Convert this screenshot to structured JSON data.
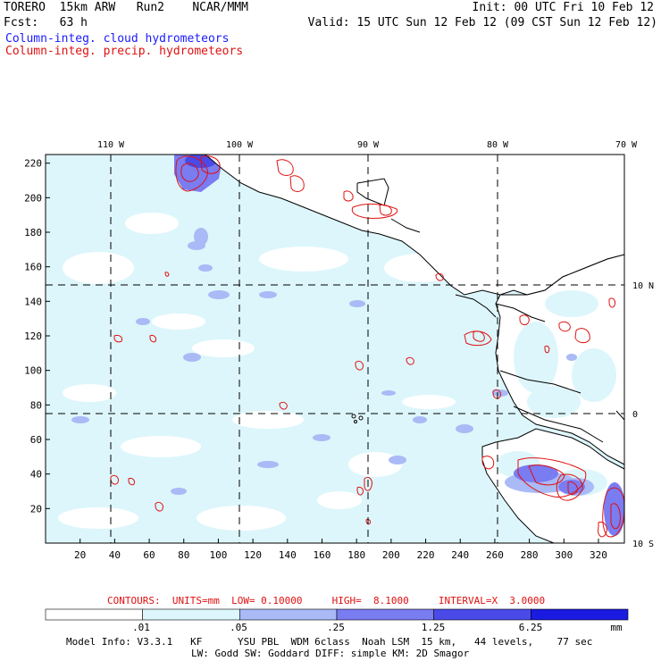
{
  "header": {
    "left_line1": "TORERO  15km ARW   Run2    NCAR/MMM",
    "left_line2": "Fcst:   63 h",
    "right_line1": "Init: 00 UTC Fri 10 Feb 12",
    "right_line2": "Valid: 15 UTC Sun 12 Feb 12 (09 CST Sun 12 Feb 12)",
    "legend_blue": "Column-integ. cloud hydrometeors",
    "legend_red": "Column-integ. precip. hydrometeors"
  },
  "map": {
    "lon_labels": [
      "110 W",
      "100 W",
      "90 W",
      "80 W",
      "70 W"
    ],
    "lat_labels": [
      "10 N",
      "0",
      "10 S"
    ],
    "x_ticks": [
      "20",
      "40",
      "60",
      "80",
      "100",
      "120",
      "140",
      "160",
      "180",
      "200",
      "220",
      "240",
      "260",
      "280",
      "300",
      "320"
    ],
    "y_ticks": [
      "220",
      "200",
      "180",
      "160",
      "140",
      "120",
      "100",
      "80",
      "60",
      "40",
      "20"
    ]
  },
  "contour_info": "CONTOURS:  UNITS=mm  LOW= 0.10000     HIGH=  8.1000     INTERVAL=X  3.0000",
  "colorbar": {
    "labels": [
      ".01",
      ".05",
      ".25",
      "1.25",
      "6.25"
    ],
    "unit": "mm",
    "colors": [
      "#ffffff",
      "#ddf6fb",
      "#a9baf6",
      "#7a7cf2",
      "#4a4ae8",
      "#1a1ae0"
    ]
  },
  "model_info": {
    "line1": "Model Info: V3.3.1   KF      YSU PBL  WDM 6class  Noah LSM  15 km,   44 levels,    77 sec",
    "line2": "LW: Godd SW: Goddard DIFF: simple KM: 2D Smagor"
  }
}
